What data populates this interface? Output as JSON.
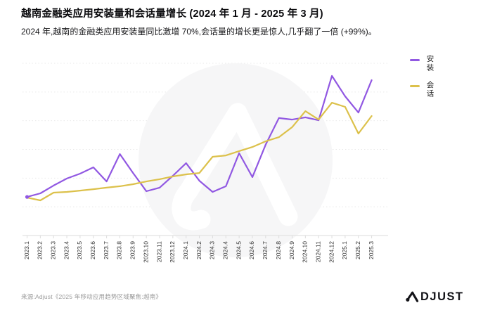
{
  "header": {
    "title": "越南金融类应用安装量和会话量增长 (2024 年 1 月 - 2025 年 3 月)",
    "subtitle": "2024 年,越南的金融类应用安装量同比激增 70%,会话量的增长更是惊人,几乎翻了一倍 (+99%)。"
  },
  "legend": [
    {
      "label": "安装",
      "color": "#9158e2"
    },
    {
      "label": "会话",
      "color": "#dcc14b"
    }
  ],
  "footer": {
    "source": "来源:Adjust《2025 年移动应用趋势区域聚焦:越南》",
    "logo_text": "DJUST",
    "logo_full_name": "ADJUST"
  },
  "colors": {
    "installs_line": "#9158e2",
    "sessions_line": "#dcc14b",
    "gridline": "#e9e9e9",
    "axis": "#e2e2e2",
    "tick": "#dcdcdc",
    "x_label": "#333333",
    "watermark_circle": "#f6f6f7",
    "watermark_glyph": "#ffffff"
  },
  "chart_data": {
    "type": "line",
    "title": "越南金融类应用安装量和会话量增长 (2024 年 1 月 - 2025 年 3 月)",
    "xlabel": "",
    "ylabel": "",
    "x_tick_rotation": 90,
    "grid": true,
    "gridline_count": 6,
    "y_axis_labels_visible": false,
    "value_units": "relative growth index (y-axis unlabeled in source, 0 = baseline axis, 100 = top gridline)",
    "ylim": [
      0,
      102
    ],
    "legend_position": "top-right",
    "categories": [
      "2023.1",
      "2023.2",
      "2023.3",
      "2023.4",
      "2023.5",
      "2023.6",
      "2023.7",
      "2023.8",
      "2023.9",
      "2023.10",
      "2023.11",
      "2023.12",
      "2024.1",
      "2024.2",
      "2024.3",
      "2024.4",
      "2024.5",
      "2024.6",
      "2024.7",
      "2024.8",
      "2024.9",
      "2024.10",
      "2024.11",
      "2024.12",
      "2025.1",
      "2025.2",
      "2025.3"
    ],
    "series": [
      {
        "name": "安装",
        "color": "#9158e2",
        "values": [
          22.4,
          24.5,
          29.0,
          33.1,
          35.9,
          39.6,
          31.4,
          47.3,
          36.3,
          25.7,
          27.8,
          34.7,
          42.0,
          31.8,
          25.3,
          28.6,
          47.8,
          33.9,
          52.7,
          68.2,
          67.3,
          68.6,
          66.9,
          92.7,
          80.8,
          71.4,
          90.2
        ]
      },
      {
        "name": "会话",
        "color": "#dcc14b",
        "values": [
          22.0,
          20.4,
          24.9,
          25.3,
          26.1,
          26.9,
          27.8,
          28.6,
          29.8,
          31.4,
          32.7,
          34.3,
          35.5,
          36.3,
          45.7,
          46.5,
          49.0,
          51.4,
          54.7,
          57.1,
          62.9,
          72.2,
          67.3,
          77.1,
          74.7,
          59.2,
          69.4
        ]
      }
    ]
  }
}
